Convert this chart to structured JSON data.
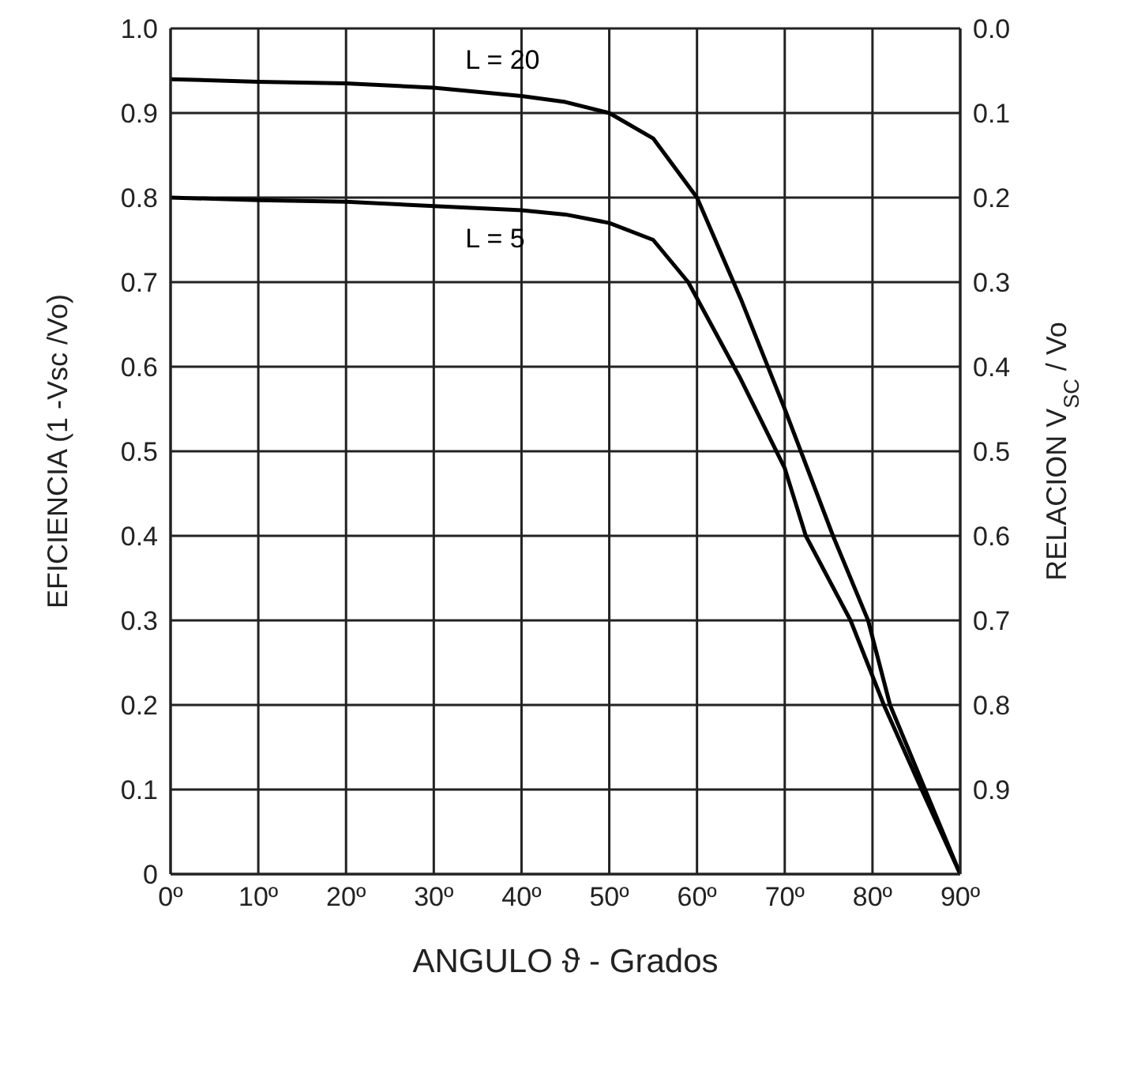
{
  "chart_data": {
    "type": "line",
    "xlabel": "ANGULO ϑ - Grados",
    "ylabel": "EFICIENCIA  (1 -Vsc /Vo)",
    "y2label": "RELACION  V$_{SC}$ / Vo",
    "series": [
      {
        "name": "L = 20",
        "color": "#000000",
        "x": [
          0,
          10,
          20,
          30,
          40,
          45,
          50,
          55,
          60,
          62.5,
          65,
          70,
          75.5,
          79.5,
          82,
          86,
          90
        ],
        "values": [
          0.94,
          0.937,
          0.935,
          0.93,
          0.92,
          0.913,
          0.9,
          0.87,
          0.8,
          0.74,
          0.68,
          0.55,
          0.4,
          0.3,
          0.2,
          0.1,
          0
        ]
      },
      {
        "name": "L = 5",
        "color": "#000000",
        "x": [
          0,
          10,
          20,
          30,
          40,
          45,
          50,
          55,
          59,
          65,
          70,
          72.4,
          77.5,
          81.3,
          85.6,
          90
        ],
        "values": [
          0.8,
          0.797,
          0.795,
          0.79,
          0.785,
          0.78,
          0.77,
          0.75,
          0.7,
          0.585,
          0.48,
          0.4,
          0.3,
          0.2,
          0.1,
          0
        ]
      }
    ],
    "xlim": [
      0,
      90
    ],
    "xticks": [
      {
        "value": 0,
        "label": "0º"
      },
      {
        "value": 10,
        "label": "10º"
      },
      {
        "value": 20,
        "label": "20º"
      },
      {
        "value": 30,
        "label": "30º"
      },
      {
        "value": 40,
        "label": "40º"
      },
      {
        "value": 50,
        "label": "50º"
      },
      {
        "value": 60,
        "label": "60º"
      },
      {
        "value": 70,
        "label": "70º"
      },
      {
        "value": 80,
        "label": "80º"
      },
      {
        "value": 90,
        "label": "90º"
      }
    ],
    "ylim": [
      0,
      1
    ],
    "yticks": [
      0,
      0.1,
      0.2,
      0.3,
      0.4,
      0.5,
      0.6,
      0.7,
      0.8,
      0.9,
      {
        "value": 1,
        "label": "1.0"
      }
    ],
    "y2lim": [
      1,
      0
    ],
    "y2ticks": [
      {
        "value": 0,
        "label": "0.0"
      },
      0.1,
      0.2,
      0.3,
      0.4,
      0.5,
      0.6,
      0.7,
      0.8,
      0.9
    ],
    "grid": true,
    "legend": false,
    "marker": "none",
    "line_style": "solid"
  }
}
